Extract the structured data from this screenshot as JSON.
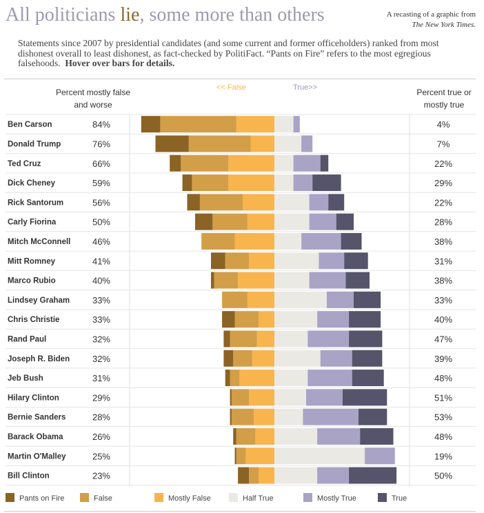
{
  "header": {
    "title_pre": "All politicians ",
    "title_lie": "lie",
    "title_post": ", some more than others",
    "credit_line": "A recasting of a graphic from",
    "credit_source": "The New York Times.",
    "subtitle": "Statements since 2007 by presidential candidates (and some current and former officeholders) ranked from most dishonest overall to least dishonest, as fact-checked by PolitiFact. “Pants on Fire” refers to the most egregious falsehoods.",
    "hover_note": "Hover over bars for details."
  },
  "columns": {
    "left_header": "Percent mostly false and worse",
    "false_arrow": "<< False",
    "true_arrow": "True>>",
    "right_header": "Percent true or mostly true"
  },
  "colors": {
    "Pants on Fire": "#8b6325",
    "False": "#d29e47",
    "Mostly False": "#f8b54e",
    "Half True": "#ebe9e4",
    "Mostly True": "#a9a3c6",
    "True": "#55546a"
  },
  "chart_data": {
    "type": "bar",
    "orientation": "horizontal diverging",
    "categories_order": [
      "Pants on Fire",
      "False",
      "Mostly False",
      "Half True",
      "Mostly True",
      "True"
    ],
    "legend": [
      "Pants on Fire",
      "False",
      "Mostly False",
      "Half True",
      "Mostly True",
      "True"
    ],
    "legend_position": "bottom",
    "rows": [
      {
        "name": "Ben Carson",
        "pct_false": "84%",
        "pct_true": "4%",
        "pants": 12,
        "false": 48,
        "mostly_false": 24,
        "half_true": 12,
        "mostly_true": 4,
        "true": 0
      },
      {
        "name": "Donald Trump",
        "pct_false": "76%",
        "pct_true": "7%",
        "pants": 21,
        "false": 39,
        "mostly_false": 15,
        "half_true": 17,
        "mostly_true": 7,
        "true": 0
      },
      {
        "name": "Ted Cruz",
        "pct_false": "66%",
        "pct_true": "22%",
        "pants": 7,
        "false": 30,
        "mostly_false": 29,
        "half_true": 12,
        "mostly_true": 17,
        "true": 5
      },
      {
        "name": "Dick Cheney",
        "pct_false": "59%",
        "pct_true": "29%",
        "pants": 6,
        "false": 23,
        "mostly_false": 29,
        "half_true": 12,
        "mostly_true": 12,
        "true": 18
      },
      {
        "name": "Rick Santorum",
        "pct_false": "56%",
        "pct_true": "22%",
        "pants": 8,
        "false": 27,
        "mostly_false": 20,
        "half_true": 22,
        "mostly_true": 12,
        "true": 10
      },
      {
        "name": "Carly Fiorina",
        "pct_false": "50%",
        "pct_true": "28%",
        "pants": 11,
        "false": 22,
        "mostly_false": 17,
        "half_true": 22,
        "mostly_true": 17,
        "true": 11
      },
      {
        "name": "Mitch McConnell",
        "pct_false": "46%",
        "pct_true": "38%",
        "pants": 0,
        "false": 21,
        "mostly_false": 25,
        "half_true": 17,
        "mostly_true": 25,
        "true": 13
      },
      {
        "name": "Mitt Romney",
        "pct_false": "41%",
        "pct_true": "31%",
        "pants": 9,
        "false": 15,
        "mostly_false": 16,
        "half_true": 28,
        "mostly_true": 16,
        "true": 15
      },
      {
        "name": "Marco Rubio",
        "pct_false": "40%",
        "pct_true": "38%",
        "pants": 2,
        "false": 15,
        "mostly_false": 23,
        "half_true": 22,
        "mostly_true": 23,
        "true": 15
      },
      {
        "name": "Lindsey Graham",
        "pct_false": "33%",
        "pct_true": "33%",
        "pants": 0,
        "false": 16,
        "mostly_false": 17,
        "half_true": 33,
        "mostly_true": 17,
        "true": 17
      },
      {
        "name": "Chris Christie",
        "pct_false": "33%",
        "pct_true": "40%",
        "pants": 8,
        "false": 15,
        "mostly_false": 10,
        "half_true": 27,
        "mostly_true": 20,
        "true": 20
      },
      {
        "name": "Rand Paul",
        "pct_false": "32%",
        "pct_true": "47%",
        "pants": 4,
        "false": 17,
        "mostly_false": 11,
        "half_true": 21,
        "mostly_true": 26,
        "true": 21
      },
      {
        "name": "Joseph R. Biden",
        "pct_false": "32%",
        "pct_true": "39%",
        "pants": 6,
        "false": 12,
        "mostly_false": 14,
        "half_true": 29,
        "mostly_true": 20,
        "true": 19
      },
      {
        "name": "Jeb Bush",
        "pct_false": "31%",
        "pct_true": "48%",
        "pants": 3,
        "false": 6,
        "mostly_false": 22,
        "half_true": 21,
        "mostly_true": 28,
        "true": 20
      },
      {
        "name": "Hilary Clinton",
        "pct_false": "29%",
        "pct_true": "51%",
        "pants": 1,
        "false": 11,
        "mostly_false": 16,
        "half_true": 20,
        "mostly_true": 23,
        "true": 28
      },
      {
        "name": "Bernie Sanders",
        "pct_false": "28%",
        "pct_true": "53%",
        "pants": 1,
        "false": 14,
        "mostly_false": 13,
        "half_true": 18,
        "mostly_true": 35,
        "true": 18
      },
      {
        "name": "Barack Obama",
        "pct_false": "26%",
        "pct_true": "48%",
        "pants": 2,
        "false": 12,
        "mostly_false": 12,
        "half_true": 27,
        "mostly_true": 27,
        "true": 21
      },
      {
        "name": "Martin O'Malley",
        "pct_false": "25%",
        "pct_true": "19%",
        "pants": 1,
        "false": 6,
        "mostly_false": 18,
        "half_true": 57,
        "mostly_true": 19,
        "true": 0
      },
      {
        "name": "Bill Clinton",
        "pct_false": "23%",
        "pct_true": "50%",
        "pants": 7,
        "false": 6,
        "mostly_false": 10,
        "half_true": 27,
        "mostly_true": 20,
        "true": 30
      }
    ]
  }
}
